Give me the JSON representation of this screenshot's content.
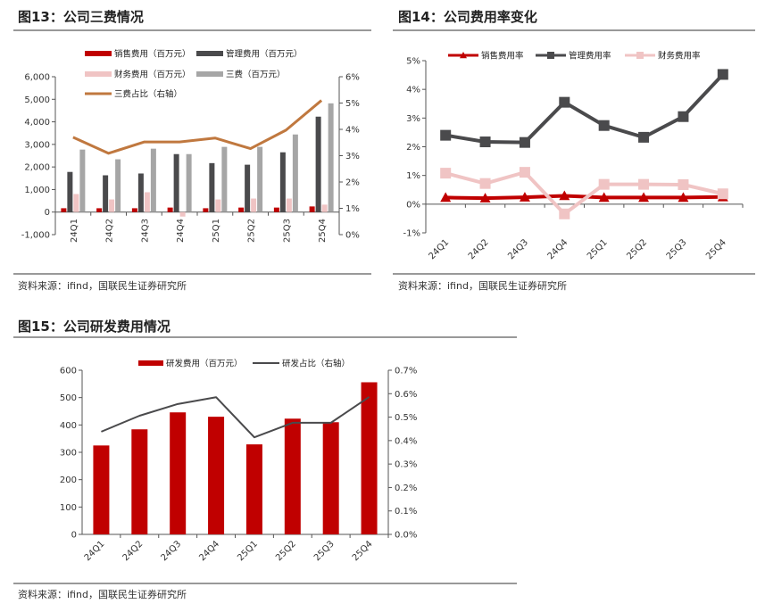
{
  "charts_text": {
    "c1": {
      "title": "图13：公司三费情况",
      "source": "资料来源：ifind，国联民生证券研究所"
    },
    "c2": {
      "title": "图14：公司费用率变化",
      "source": "资料来源：ifind，国联民生证券研究所"
    },
    "c3": {
      "title": "图15：公司研发费用情况",
      "source": "资料来源：ifind，国联民生证券研究所"
    }
  },
  "chart_data": [
    {
      "type": "bar",
      "title": "图13：公司三费情况",
      "categories": [
        "24Q1",
        "24Q2",
        "24Q3",
        "24Q4",
        "25Q1",
        "25Q2",
        "25Q3",
        "25Q4"
      ],
      "ylim": [
        -1000,
        6000
      ],
      "yticks": [
        "-1,000",
        "0",
        "1,000",
        "2,000",
        "3,000",
        "4,000",
        "5,000",
        "6,000"
      ],
      "y2lim": [
        0,
        6
      ],
      "y2ticks": [
        "0%",
        "1%",
        "2%",
        "3%",
        "4%",
        "5%",
        "6%"
      ],
      "legend": "top",
      "series": [
        {
          "name": "销售费用（百万元）",
          "kind": "bar",
          "color": "#c00000",
          "values": [
            170,
            170,
            170,
            200,
            170,
            200,
            200,
            250
          ]
        },
        {
          "name": "管理费用（百万元）",
          "kind": "bar",
          "color": "#4a4a4c",
          "values": [
            1780,
            1630,
            1710,
            2570,
            2170,
            2100,
            2650,
            4230
          ]
        },
        {
          "name": "财务费用（百万元）",
          "kind": "bar",
          "color": "#f0c4c4",
          "values": [
            800,
            560,
            880,
            -200,
            560,
            600,
            600,
            330
          ]
        },
        {
          "name": "三费（百万元）",
          "kind": "bar",
          "color": "#a6a6a6",
          "values": [
            2770,
            2340,
            2810,
            2570,
            2890,
            2890,
            3440,
            4820
          ]
        },
        {
          "name": "三费占比（右轴）",
          "kind": "line",
          "axis": "right",
          "color": "#c0783f",
          "values": [
            3.7,
            3.09,
            3.52,
            3.52,
            3.67,
            3.27,
            3.97,
            5.1
          ]
        }
      ]
    },
    {
      "type": "line",
      "title": "图14：公司费用率变化",
      "categories": [
        "24Q1",
        "24Q2",
        "24Q3",
        "24Q4",
        "25Q1",
        "25Q2",
        "25Q3",
        "25Q4"
      ],
      "ylim": [
        -1,
        5
      ],
      "yticks": [
        "-1%",
        "0%",
        "1%",
        "2%",
        "3%",
        "4%",
        "5%"
      ],
      "legend": "top",
      "series": [
        {
          "name": "销售费用率",
          "marker": "triangle",
          "color": "#c00000",
          "values": [
            0.23,
            0.21,
            0.24,
            0.29,
            0.23,
            0.23,
            0.23,
            0.25
          ]
        },
        {
          "name": "管理费用率",
          "marker": "square",
          "color": "#4a4a4c",
          "values": [
            2.4,
            2.17,
            2.15,
            3.55,
            2.74,
            2.33,
            3.05,
            4.52
          ]
        },
        {
          "name": "财务费用率",
          "marker": "square",
          "color": "#f0c4c4",
          "values": [
            1.08,
            0.72,
            1.11,
            -0.34,
            0.69,
            0.69,
            0.68,
            0.36
          ]
        }
      ]
    },
    {
      "type": "bar",
      "title": "图15：公司研发费用情况",
      "categories": [
        "24Q1",
        "24Q2",
        "24Q3",
        "24Q4",
        "25Q1",
        "25Q2",
        "25Q3",
        "25Q4"
      ],
      "ylim": [
        0,
        600
      ],
      "yticks": [
        "0",
        "100",
        "200",
        "300",
        "400",
        "500",
        "600"
      ],
      "y2lim": [
        0,
        0.7
      ],
      "y2ticks": [
        "0.0%",
        "0.1%",
        "0.2%",
        "0.3%",
        "0.4%",
        "0.5%",
        "0.6%",
        "0.7%"
      ],
      "legend": "top",
      "series": [
        {
          "name": "研发费用（百万元）",
          "kind": "bar",
          "color": "#c00000",
          "values": [
            325,
            384,
            446,
            430,
            329,
            423,
            410,
            556
          ]
        },
        {
          "name": "研发占比（右轴）",
          "kind": "line",
          "axis": "right",
          "color": "#4a4a4c",
          "values": [
            0.438,
            0.506,
            0.556,
            0.585,
            0.414,
            0.476,
            0.476,
            0.586
          ]
        }
      ]
    }
  ]
}
